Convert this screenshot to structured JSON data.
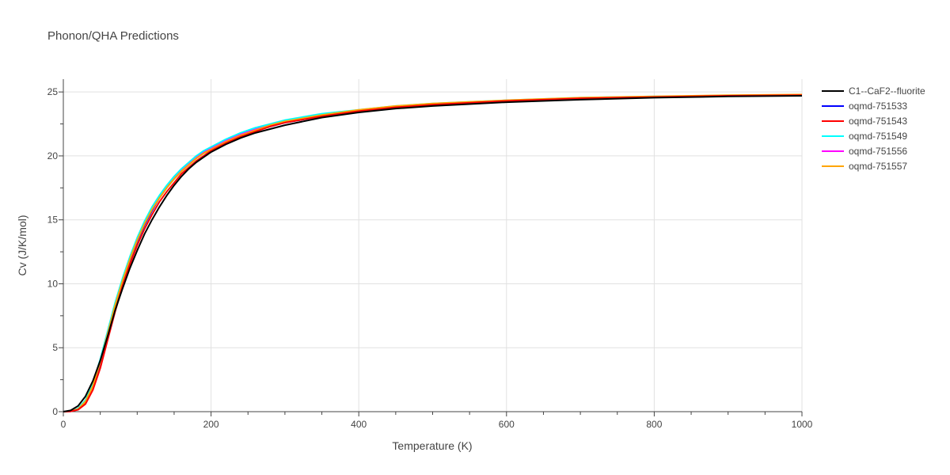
{
  "chart_data": {
    "type": "line",
    "title": "Phonon/QHA Predictions",
    "xlabel": "Temperature (K)",
    "ylabel": "Cv (J/K/mol)",
    "xlim": [
      0,
      1000
    ],
    "ylim": [
      0,
      26
    ],
    "xticks": [
      0,
      200,
      400,
      600,
      800,
      1000
    ],
    "yticks": [
      0,
      5,
      10,
      15,
      20,
      25
    ],
    "xtick_labels": [
      "0",
      "200",
      "400",
      "600",
      "800",
      "1000"
    ],
    "ytick_labels": [
      "0",
      "5",
      "10",
      "15",
      "20",
      "25"
    ],
    "grid": true,
    "legend_position": "right",
    "x": [
      0,
      10,
      20,
      30,
      40,
      50,
      60,
      70,
      80,
      90,
      100,
      110,
      120,
      130,
      140,
      150,
      160,
      170,
      180,
      190,
      200,
      220,
      240,
      260,
      280,
      300,
      350,
      400,
      450,
      500,
      600,
      700,
      800,
      900,
      1000
    ],
    "series": [
      {
        "name": "C1--CaF2--fluorite",
        "color": "#000000",
        "values": [
          0,
          0.1,
          0.45,
          1.2,
          2.4,
          4.0,
          5.9,
          7.9,
          9.6,
          11.2,
          12.6,
          13.9,
          15.0,
          16.0,
          16.9,
          17.7,
          18.4,
          19.0,
          19.5,
          19.9,
          20.3,
          20.9,
          21.4,
          21.8,
          22.1,
          22.4,
          23.0,
          23.4,
          23.7,
          23.9,
          24.2,
          24.4,
          24.55,
          24.65,
          24.7
        ]
      },
      {
        "name": "oqmd-751533",
        "color": "#0000ff",
        "values": [
          0,
          0.02,
          0.2,
          0.8,
          2.0,
          3.8,
          6.0,
          8.2,
          10.1,
          11.8,
          13.3,
          14.6,
          15.7,
          16.7,
          17.5,
          18.2,
          18.8,
          19.3,
          19.8,
          20.2,
          20.5,
          21.1,
          21.6,
          22.0,
          22.3,
          22.6,
          23.1,
          23.5,
          23.8,
          24.0,
          24.3,
          24.5,
          24.6,
          24.7,
          24.75
        ]
      },
      {
        "name": "oqmd-751543",
        "color": "#ff0000",
        "values": [
          0,
          0.02,
          0.15,
          0.6,
          1.7,
          3.4,
          5.6,
          7.8,
          9.8,
          11.5,
          13.0,
          14.3,
          15.4,
          16.4,
          17.2,
          17.9,
          18.6,
          19.1,
          19.6,
          20.0,
          20.4,
          21.0,
          21.5,
          21.9,
          22.3,
          22.6,
          23.1,
          23.5,
          23.8,
          24.0,
          24.3,
          24.5,
          24.6,
          24.7,
          24.75
        ]
      },
      {
        "name": "oqmd-751549",
        "color": "#00ffff",
        "values": [
          0,
          0.03,
          0.25,
          0.9,
          2.2,
          4.1,
          6.3,
          8.5,
          10.4,
          12.1,
          13.6,
          14.9,
          16.0,
          16.9,
          17.7,
          18.4,
          19.0,
          19.5,
          20.0,
          20.4,
          20.7,
          21.3,
          21.8,
          22.2,
          22.5,
          22.8,
          23.3,
          23.6,
          23.9,
          24.1,
          24.35,
          24.55,
          24.65,
          24.7,
          24.75
        ]
      },
      {
        "name": "oqmd-751556",
        "color": "#ff00ff",
        "values": [
          0,
          0.03,
          0.22,
          0.85,
          2.1,
          4.0,
          6.2,
          8.4,
          10.3,
          12.0,
          13.5,
          14.8,
          15.9,
          16.8,
          17.6,
          18.3,
          18.9,
          19.4,
          19.9,
          20.3,
          20.6,
          21.2,
          21.7,
          22.1,
          22.4,
          22.7,
          23.2,
          23.55,
          23.85,
          24.05,
          24.3,
          24.5,
          24.6,
          24.7,
          24.75
        ]
      },
      {
        "name": "oqmd-751557",
        "color": "#ffa500",
        "values": [
          0,
          0.03,
          0.2,
          0.8,
          2.0,
          3.9,
          6.1,
          8.3,
          10.2,
          11.9,
          13.4,
          14.7,
          15.8,
          16.7,
          17.5,
          18.2,
          18.8,
          19.3,
          19.8,
          20.2,
          20.5,
          21.1,
          21.6,
          22.0,
          22.4,
          22.7,
          23.2,
          23.6,
          23.9,
          24.1,
          24.35,
          24.55,
          24.65,
          24.75,
          24.8
        ]
      }
    ]
  }
}
